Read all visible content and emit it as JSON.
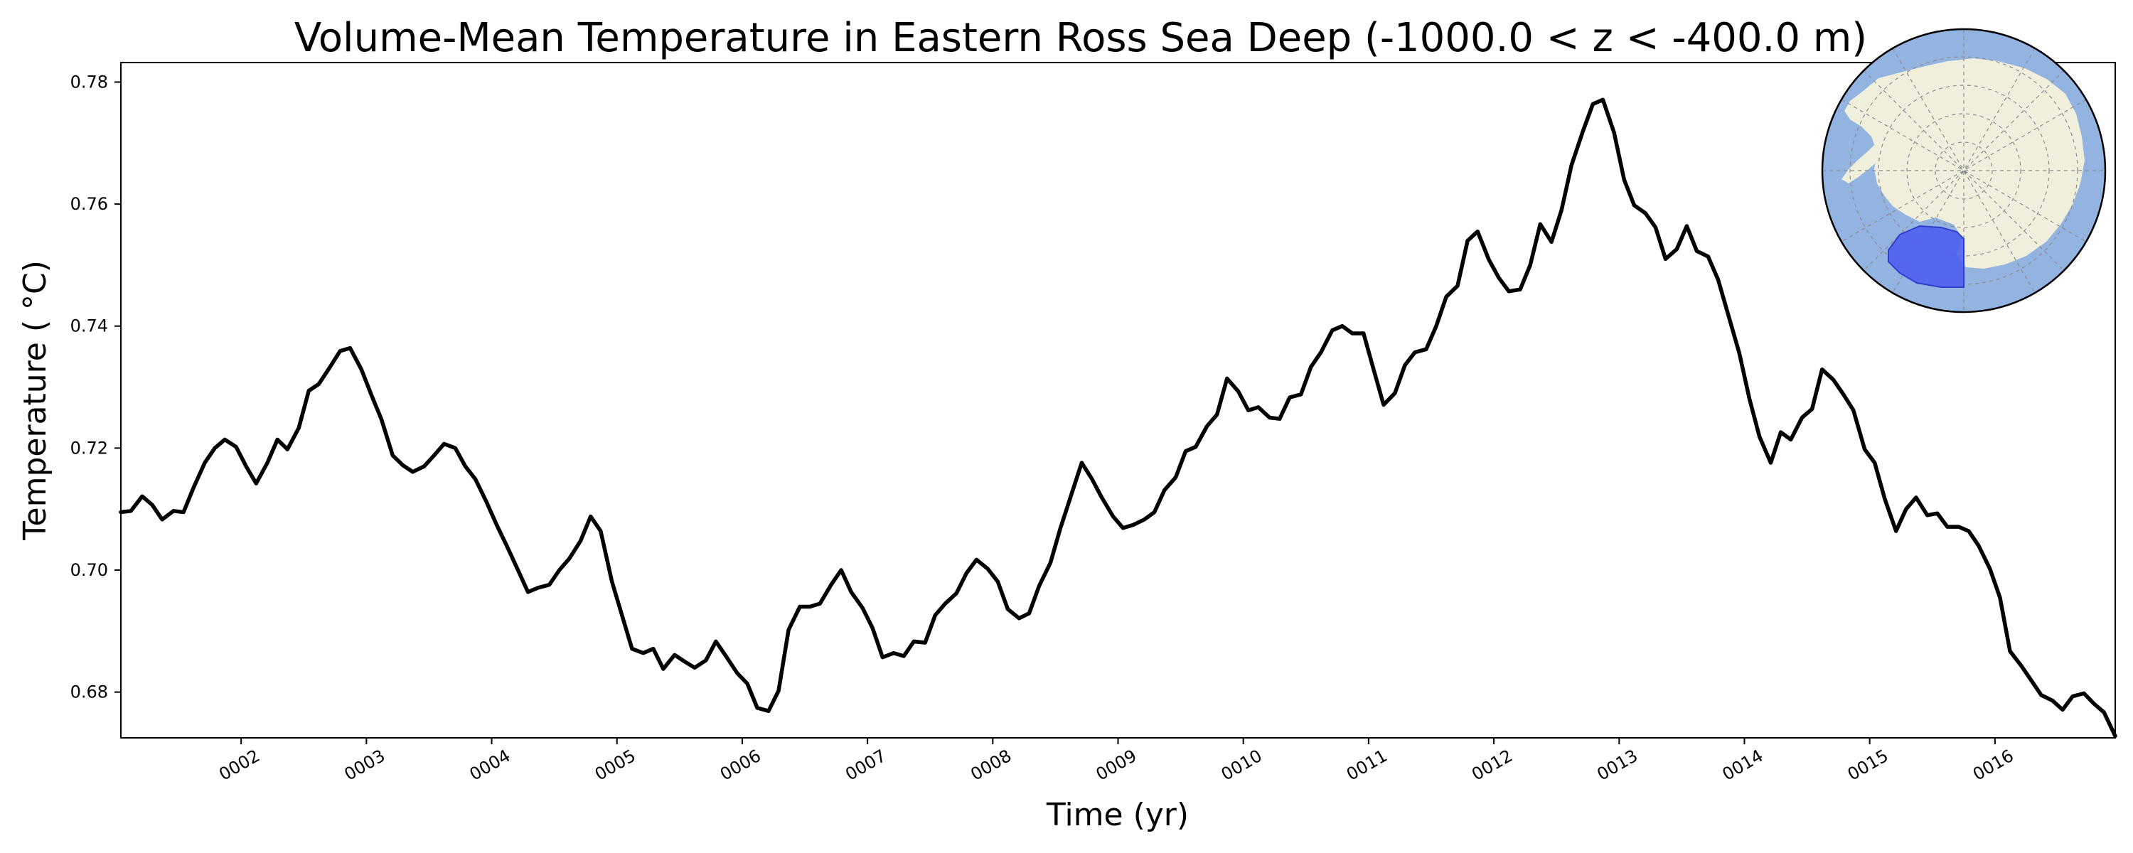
{
  "chart_data": {
    "type": "line",
    "title": "Volume-Mean Temperature in Eastern Ross Sea Deep (-1000.0 < z < -400.0 m)",
    "xlabel": "Time (yr)",
    "ylabel": "Temperature ($^\\circ$C)",
    "ylabel_display": "Temperature ( °C)",
    "xlim": [
      1.04,
      16.96
    ],
    "ylim": [
      0.6725,
      0.7832
    ],
    "x_ticks": [
      2,
      3,
      4,
      5,
      6,
      7,
      8,
      9,
      10,
      11,
      12,
      13,
      14,
      15,
      16
    ],
    "x_tick_labels": [
      "0002",
      "0003",
      "0004",
      "0005",
      "0006",
      "0007",
      "0008",
      "0009",
      "0010",
      "0011",
      "0012",
      "0013",
      "0014",
      "0015",
      "0016"
    ],
    "y_ticks": [
      0.68,
      0.7,
      0.72,
      0.74,
      0.76,
      0.78
    ],
    "y_tick_labels": [
      "0.68",
      "0.70",
      "0.72",
      "0.74",
      "0.76",
      "0.78"
    ],
    "grid": false,
    "legend": "none",
    "series": [
      {
        "line_color": "#000000",
        "x": [
          1.04,
          1.12,
          1.21,
          1.29,
          1.37,
          1.46,
          1.54,
          1.62,
          1.71,
          1.79,
          1.87,
          1.96,
          2.04,
          2.12,
          2.21,
          2.29,
          2.37,
          2.46,
          2.54,
          2.62,
          2.71,
          2.79,
          2.87,
          2.96,
          3.04,
          3.12,
          3.21,
          3.29,
          3.37,
          3.46,
          3.54,
          3.62,
          3.71,
          3.79,
          3.87,
          3.96,
          4.04,
          4.12,
          4.21,
          4.29,
          4.37,
          4.46,
          4.54,
          4.62,
          4.71,
          4.79,
          4.87,
          4.96,
          5.04,
          5.12,
          5.21,
          5.29,
          5.37,
          5.46,
          5.54,
          5.62,
          5.71,
          5.79,
          5.87,
          5.96,
          6.04,
          6.12,
          6.21,
          6.29,
          6.37,
          6.46,
          6.54,
          6.62,
          6.71,
          6.79,
          6.87,
          6.96,
          7.04,
          7.12,
          7.21,
          7.29,
          7.37,
          7.46,
          7.54,
          7.62,
          7.71,
          7.79,
          7.87,
          7.96,
          8.04,
          8.12,
          8.21,
          8.29,
          8.37,
          8.46,
          8.54,
          8.62,
          8.71,
          8.79,
          8.87,
          8.96,
          9.04,
          9.12,
          9.21,
          9.29,
          9.37,
          9.46,
          9.54,
          9.62,
          9.71,
          9.79,
          9.87,
          9.96,
          10.04,
          10.12,
          10.21,
          10.29,
          10.37,
          10.46,
          10.54,
          10.62,
          10.71,
          10.79,
          10.87,
          10.96,
          11.04,
          11.12,
          11.21,
          11.29,
          11.37,
          11.46,
          11.54,
          11.62,
          11.71,
          11.79,
          11.87,
          11.96,
          12.04,
          12.12,
          12.21,
          12.29,
          12.37,
          12.46,
          12.54,
          12.62,
          12.71,
          12.79,
          12.87,
          12.96,
          13.04,
          13.12,
          13.21,
          13.29,
          13.37,
          13.46,
          13.54,
          13.62,
          13.71,
          13.79,
          13.87,
          13.96,
          14.04,
          14.12,
          14.21,
          14.29,
          14.37,
          14.46,
          14.54,
          14.62,
          14.71,
          14.79,
          14.87,
          14.96,
          15.04,
          15.12,
          15.21,
          15.29,
          15.37,
          15.46,
          15.54,
          15.62,
          15.71,
          15.79,
          15.87,
          15.96,
          16.04,
          16.12,
          16.21,
          16.29,
          16.37,
          16.46,
          16.54,
          16.62,
          16.71,
          16.79,
          16.87,
          16.96
        ],
        "y": [
          0.7095,
          0.7097,
          0.7121,
          0.7107,
          0.7083,
          0.7097,
          0.7095,
          0.7135,
          0.7176,
          0.72,
          0.7214,
          0.7202,
          0.717,
          0.7142,
          0.7176,
          0.7214,
          0.7198,
          0.7233,
          0.7294,
          0.7305,
          0.7333,
          0.7359,
          0.7364,
          0.7329,
          0.7287,
          0.7247,
          0.7188,
          0.7172,
          0.7161,
          0.717,
          0.7188,
          0.7207,
          0.72,
          0.717,
          0.7149,
          0.7111,
          0.7074,
          0.704,
          0.7,
          0.6964,
          0.6971,
          0.6976,
          0.7,
          0.7019,
          0.7048,
          0.7088,
          0.7064,
          0.6981,
          0.6926,
          0.6871,
          0.6864,
          0.6871,
          0.6838,
          0.6861,
          0.685,
          0.684,
          0.6852,
          0.6883,
          0.6859,
          0.6831,
          0.6814,
          0.6774,
          0.6769,
          0.6802,
          0.6902,
          0.694,
          0.694,
          0.6945,
          0.6976,
          0.7,
          0.6964,
          0.6938,
          0.6905,
          0.6857,
          0.6864,
          0.6859,
          0.6883,
          0.6881,
          0.6926,
          0.6945,
          0.6962,
          0.6995,
          0.7017,
          0.7002,
          0.6981,
          0.6936,
          0.6921,
          0.6929,
          0.6974,
          0.7012,
          0.7069,
          0.7119,
          0.7176,
          0.715,
          0.7119,
          0.7088,
          0.7069,
          0.7074,
          0.7083,
          0.7095,
          0.7131,
          0.7152,
          0.7195,
          0.7202,
          0.7236,
          0.7255,
          0.7314,
          0.7293,
          0.7262,
          0.7267,
          0.725,
          0.7248,
          0.7283,
          0.7288,
          0.7333,
          0.7357,
          0.7393,
          0.74,
          0.7388,
          0.7388,
          0.7329,
          0.7271,
          0.729,
          0.7336,
          0.7357,
          0.7362,
          0.74,
          0.7448,
          0.7466,
          0.754,
          0.7555,
          0.7509,
          0.7479,
          0.7457,
          0.746,
          0.75,
          0.7567,
          0.7538,
          0.759,
          0.7664,
          0.7719,
          0.7764,
          0.7771,
          0.7717,
          0.764,
          0.7598,
          0.7585,
          0.7562,
          0.751,
          0.7526,
          0.7564,
          0.7523,
          0.7514,
          0.7476,
          0.7419,
          0.7355,
          0.7281,
          0.7219,
          0.7176,
          0.7226,
          0.7214,
          0.725,
          0.7264,
          0.7329,
          0.7312,
          0.7288,
          0.7262,
          0.7198,
          0.7176,
          0.7117,
          0.7064,
          0.71,
          0.7119,
          0.709,
          0.7093,
          0.7071,
          0.7071,
          0.7064,
          0.704,
          0.7002,
          0.6955,
          0.6867,
          0.6843,
          0.6819,
          0.6795,
          0.6786,
          0.6771,
          0.6793,
          0.6798,
          0.6781,
          0.6767,
          0.6728
        ]
      }
    ]
  },
  "inset": {
    "land_color": "#f0efdc",
    "ocean_color": "#93b3e0",
    "region_color": "#4e5ff0",
    "region_edge_color": "#2f3fd0"
  }
}
